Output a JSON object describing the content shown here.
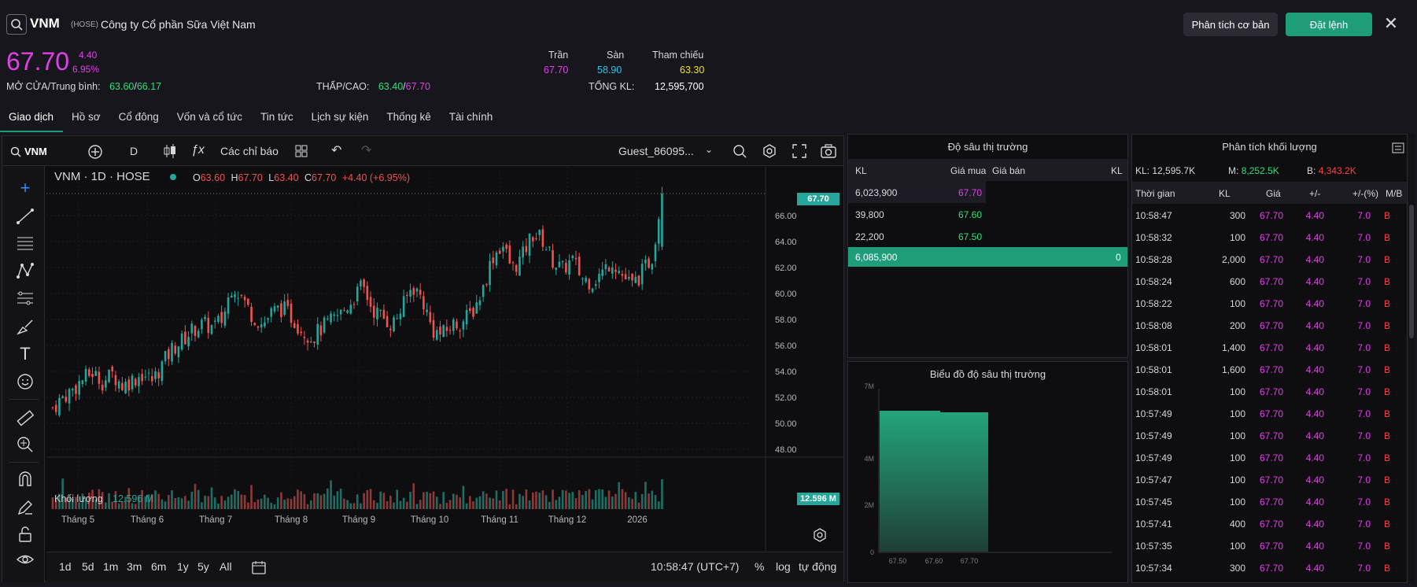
{
  "header": {
    "symbol": "VNM",
    "exchange": "(HOSE)",
    "company": "Công ty Cổ phần Sữa Việt Nam",
    "analysis_btn": "Phân tích cơ bản",
    "order_btn": "Đặt lệnh",
    "close_icon": "close-icon"
  },
  "quote": {
    "price": "67.70",
    "change": "4.40",
    "change_pct": "6.95%",
    "open_avg_label": "MỞ CỬA/Trung bình:",
    "open": "63.60",
    "avg": "66.17",
    "lowhigh_label": "THẤP/CAO:",
    "low": "63.40",
    "high": "67.70",
    "ceiling_label": "Trần",
    "floor_label": "Sàn",
    "ref_label": "Tham chiếu",
    "ceiling": "67.70",
    "floor": "58.90",
    "ref": "63.30",
    "total_vol_label": "TỔNG KL:",
    "total_vol": "12,595,700"
  },
  "tabs": [
    "Giao dịch",
    "Hồ sơ",
    "Cổ đông",
    "Vốn và cổ tức",
    "Tin tức",
    "Lịch sự kiện",
    "Thống kê",
    "Tài chính"
  ],
  "chart_toolbar": {
    "symbol": "VNM",
    "interval": "D",
    "indicators": "Các chỉ báo",
    "layout": "Guest_86095..."
  },
  "chart_legend": {
    "title": "VNM · 1D · HOSE",
    "o_label": "O",
    "o": "63.60",
    "h_label": "H",
    "h": "67.70",
    "l_label": "L",
    "l": "63.40",
    "c_label": "C",
    "c": "67.70",
    "chg": "+4.40 (+6.95%)",
    "vol_label": "Khối lượng",
    "vol": "12.596 M",
    "last_price_tag": "67.70",
    "last_vol_tag": "12.596 M"
  },
  "chart_axis": {
    "y_ticks": [
      "66.00",
      "64.00",
      "62.00",
      "60.00",
      "58.00",
      "56.00",
      "54.00",
      "52.00",
      "50.00",
      "48.00"
    ],
    "x_ticks": [
      "Tháng 5",
      "Tháng 6",
      "Tháng 7",
      "Tháng 8",
      "Tháng 9",
      "Tháng 10",
      "Tháng 11",
      "Tháng 12",
      "2026"
    ]
  },
  "chart_bottom": {
    "timeframes": [
      "1d",
      "5d",
      "1m",
      "3m",
      "6m",
      "1y",
      "5y",
      "All"
    ],
    "clock": "10:58:47 (UTC+7)",
    "pct": "%",
    "log": "log",
    "auto": "tự động"
  },
  "chart_data": {
    "type": "candlestick",
    "title": "VNM · 1D · HOSE",
    "ylim": [
      48,
      68
    ],
    "x_labels": [
      "Tháng 5",
      "Tháng 6",
      "Tháng 7",
      "Tháng 8",
      "Tháng 9",
      "Tháng 10",
      "Tháng 11",
      "Tháng 12",
      "2026"
    ],
    "close_trend": [
      51.2,
      52.0,
      52.6,
      53.4,
      53.9,
      53.2,
      53.8,
      52.9,
      53.4,
      53.8,
      53.3,
      54.6,
      55.8,
      56.4,
      57.2,
      57.6,
      57.4,
      58.0,
      60.8,
      59.6,
      58.3,
      57.6,
      58.6,
      58.9,
      58.1,
      57.2,
      56.6,
      57.4,
      57.9,
      58.6,
      59.5,
      60.6,
      58.8,
      58.2,
      57.6,
      58.9,
      60.6,
      59.6,
      57.2,
      56.8,
      57.6,
      57.8,
      58.6,
      60.2,
      62.8,
      63.8,
      61.9,
      62.8,
      64.6,
      64.2,
      62.6,
      61.8,
      62.6,
      61.2,
      60.9,
      61.6,
      62.6,
      61.4,
      60.6,
      61.6,
      62.8,
      67.7
    ],
    "volume_last": "12.596 M"
  },
  "depth": {
    "title": "Độ sâu thị trường",
    "h_kl": "KL",
    "h_bid": "Giá mua",
    "h_ask": "Giá bán",
    "h_kl2": "KL",
    "rows": [
      {
        "kl": "6,023,900",
        "bid": "67.70"
      },
      {
        "kl": "39,800",
        "bid": "67.60"
      },
      {
        "kl": "22,200",
        "bid": "67.50"
      }
    ],
    "total_bid": "6,085,900",
    "total_ask": "0"
  },
  "depth_chart": {
    "title": "Biểu đồ độ sâu thị trường",
    "y_ticks": [
      "7M",
      "4M",
      "2M",
      "0"
    ],
    "x_ticks": [
      "67.50",
      "67.60",
      "67.70"
    ]
  },
  "vol_analysis": {
    "title": "Phân tích khối lượng",
    "kl_label": "KL:",
    "kl": "12,595.7K",
    "m_label": "M:",
    "m": "8,252.5K",
    "b_label": "B:",
    "b": "4,343.2K",
    "headers": [
      "Thời gian",
      "KL",
      "Giá",
      "+/-",
      "+/-(%)",
      "M/B"
    ],
    "rows": [
      {
        "t": "10:58:47",
        "kl": "300",
        "p": "67.70",
        "c": "4.40",
        "cp": "7.0",
        "mb": "B"
      },
      {
        "t": "10:58:32",
        "kl": "100",
        "p": "67.70",
        "c": "4.40",
        "cp": "7.0",
        "mb": "B"
      },
      {
        "t": "10:58:28",
        "kl": "2,000",
        "p": "67.70",
        "c": "4.40",
        "cp": "7.0",
        "mb": "B"
      },
      {
        "t": "10:58:24",
        "kl": "600",
        "p": "67.70",
        "c": "4.40",
        "cp": "7.0",
        "mb": "B"
      },
      {
        "t": "10:58:22",
        "kl": "100",
        "p": "67.70",
        "c": "4.40",
        "cp": "7.0",
        "mb": "B"
      },
      {
        "t": "10:58:08",
        "kl": "200",
        "p": "67.70",
        "c": "4.40",
        "cp": "7.0",
        "mb": "B"
      },
      {
        "t": "10:58:01",
        "kl": "1,400",
        "p": "67.70",
        "c": "4.40",
        "cp": "7.0",
        "mb": "B"
      },
      {
        "t": "10:58:01",
        "kl": "1,600",
        "p": "67.70",
        "c": "4.40",
        "cp": "7.0",
        "mb": "B"
      },
      {
        "t": "10:58:01",
        "kl": "100",
        "p": "67.70",
        "c": "4.40",
        "cp": "7.0",
        "mb": "B"
      },
      {
        "t": "10:57:49",
        "kl": "100",
        "p": "67.70",
        "c": "4.40",
        "cp": "7.0",
        "mb": "B"
      },
      {
        "t": "10:57:49",
        "kl": "100",
        "p": "67.70",
        "c": "4.40",
        "cp": "7.0",
        "mb": "B"
      },
      {
        "t": "10:57:49",
        "kl": "100",
        "p": "67.70",
        "c": "4.40",
        "cp": "7.0",
        "mb": "B"
      },
      {
        "t": "10:57:47",
        "kl": "100",
        "p": "67.70",
        "c": "4.40",
        "cp": "7.0",
        "mb": "B"
      },
      {
        "t": "10:57:45",
        "kl": "100",
        "p": "67.70",
        "c": "4.40",
        "cp": "7.0",
        "mb": "B"
      },
      {
        "t": "10:57:41",
        "kl": "400",
        "p": "67.70",
        "c": "4.40",
        "cp": "7.0",
        "mb": "B"
      },
      {
        "t": "10:57:35",
        "kl": "100",
        "p": "67.70",
        "c": "4.40",
        "cp": "7.0",
        "mb": "B"
      },
      {
        "t": "10:57:34",
        "kl": "300",
        "p": "67.70",
        "c": "4.40",
        "cp": "7.0",
        "mb": "B"
      }
    ]
  },
  "colors": {
    "up": "#26a69a",
    "down": "#ef5350",
    "accent": "#1e9e78",
    "ceiling": "#e040e8",
    "floor": "#29c6ee",
    "ref": "#f0e02a"
  }
}
